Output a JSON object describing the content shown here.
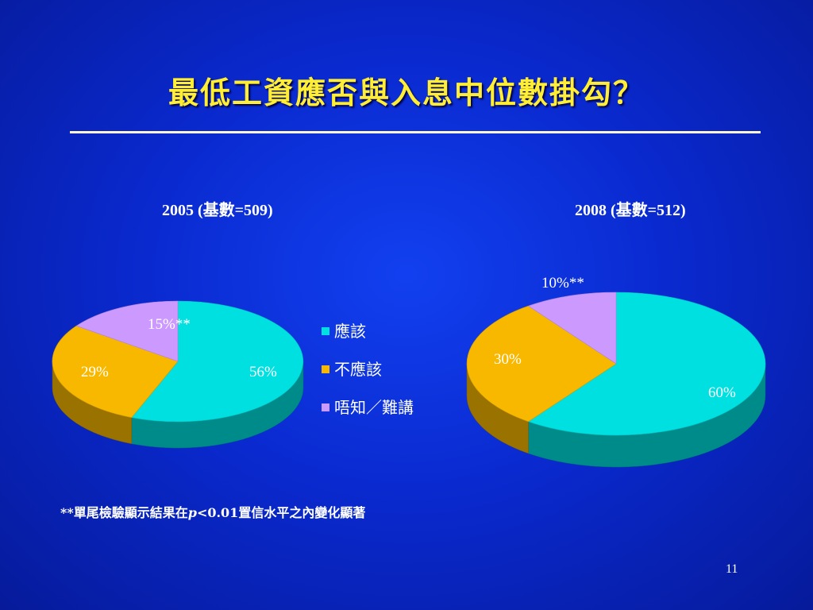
{
  "slide": {
    "title": "最低工資應否與入息中位數掛勾？",
    "page_number": "11",
    "footnote": {
      "prefix": "**單尾檢驗顯示結果在",
      "p": "p",
      "suffix": "<0.01置信水平之內變化顯著"
    }
  },
  "legend": [
    {
      "label": "應該",
      "color": "#00e0e0"
    },
    {
      "label": "不應該",
      "color": "#f8b800"
    },
    {
      "label": "唔知／難講",
      "color": "#cc99ff"
    }
  ],
  "chart_data": [
    {
      "type": "pie",
      "title": "2005 (基數=509)",
      "categories": [
        "應該",
        "不應該",
        "唔知／難講"
      ],
      "values": [
        56,
        29,
        15
      ],
      "labels": [
        "56%",
        "29%",
        "15%**"
      ],
      "colors": [
        "#00e0e0",
        "#f8b800",
        "#cc99ff"
      ]
    },
    {
      "type": "pie",
      "title": "2008 (基數=512)",
      "categories": [
        "應該",
        "不應該",
        "唔知／難講"
      ],
      "values": [
        60,
        30,
        10
      ],
      "labels": [
        "60%",
        "30%",
        "10%**"
      ],
      "colors": [
        "#00e0e0",
        "#f8b800",
        "#cc99ff"
      ]
    }
  ]
}
